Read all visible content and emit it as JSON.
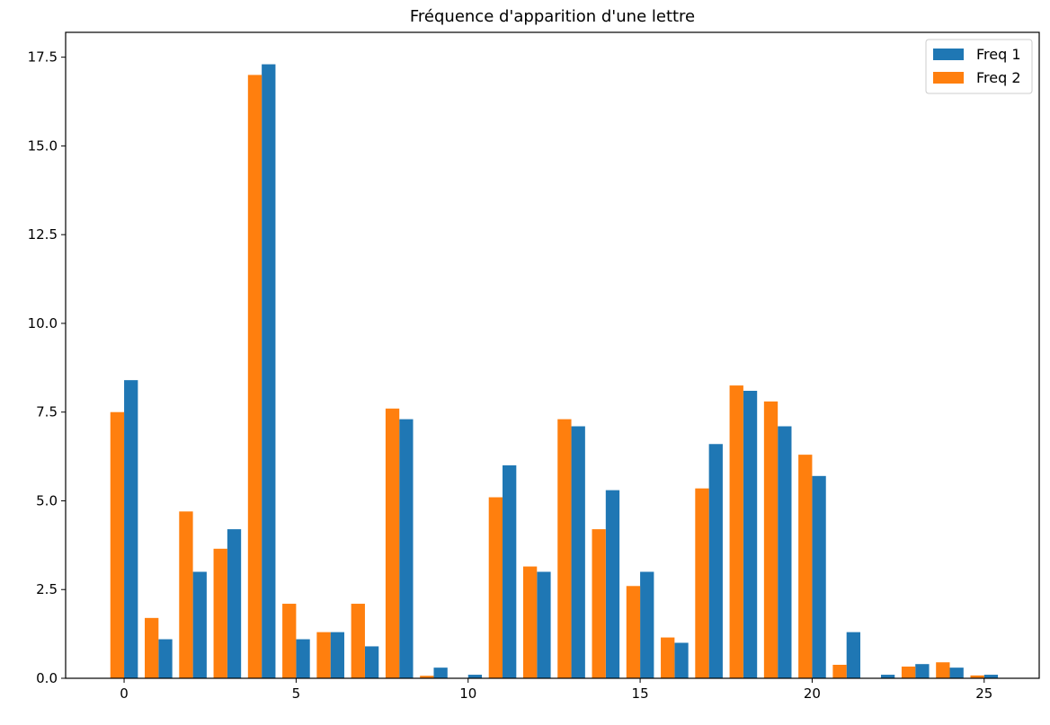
{
  "chart_data": {
    "type": "bar",
    "title": "Fréquence d'apparition d'une lettre",
    "xlabel": "",
    "ylabel": "",
    "x": [
      0,
      1,
      2,
      3,
      4,
      5,
      6,
      7,
      8,
      9,
      10,
      11,
      12,
      13,
      14,
      15,
      16,
      17,
      18,
      19,
      20,
      21,
      22,
      23,
      24,
      25
    ],
    "xlim": [
      -1.7,
      26.6
    ],
    "ylim": [
      0,
      18.2
    ],
    "xticks": [
      0,
      5,
      10,
      15,
      20,
      25
    ],
    "xtick_labels": [
      "0",
      "5",
      "10",
      "15",
      "20",
      "25"
    ],
    "yticks": [
      0,
      2.5,
      5,
      7.5,
      10,
      12.5,
      15,
      17.5
    ],
    "ytick_labels": [
      "0.0",
      "2.5",
      "5.0",
      "7.5",
      "10.0",
      "12.5",
      "15.0",
      "17.5"
    ],
    "grid": false,
    "legend_position": "top-right",
    "series": [
      {
        "name": "Freq 1",
        "color": "#1f77b4",
        "offset": "right",
        "values": [
          8.4,
          1.1,
          3.0,
          4.2,
          17.3,
          1.1,
          1.3,
          0.9,
          7.3,
          0.3,
          0.1,
          6.0,
          3.0,
          7.1,
          5.3,
          3.0,
          1.0,
          6.6,
          8.1,
          7.1,
          5.7,
          1.3,
          0.1,
          0.4,
          0.3,
          0.1
        ]
      },
      {
        "name": "Freq 2",
        "color": "#ff7f0e",
        "offset": "left",
        "values": [
          7.5,
          1.7,
          4.7,
          3.65,
          17.0,
          2.1,
          1.3,
          2.1,
          7.6,
          0.07,
          0.0,
          5.1,
          3.15,
          7.3,
          4.2,
          2.6,
          1.15,
          5.35,
          8.25,
          7.8,
          6.3,
          0.38,
          0.0,
          0.33,
          0.45,
          0.08
        ]
      }
    ]
  }
}
